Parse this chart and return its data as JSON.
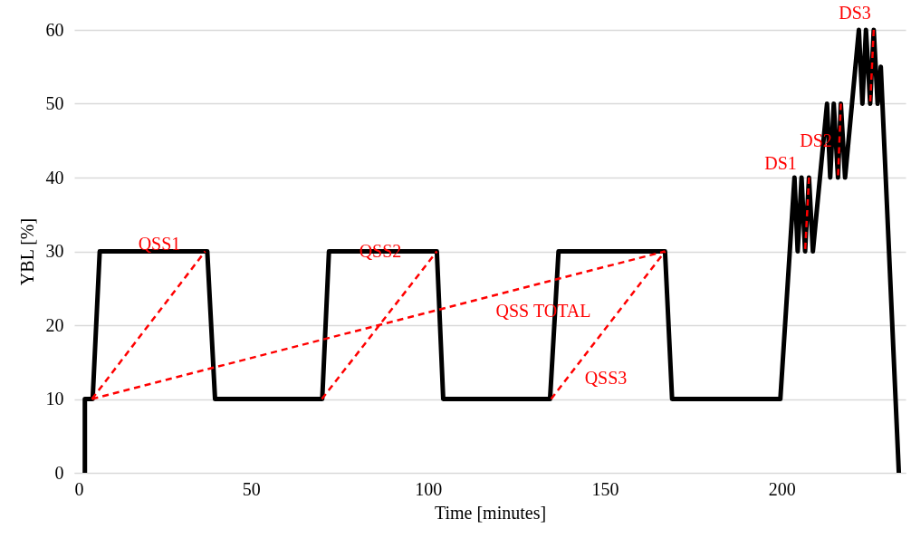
{
  "chart_data": {
    "type": "line",
    "xlabel": "Time [minutes]",
    "ylabel": "YBL [%]",
    "xlim": [
      0,
      235
    ],
    "ylim": [
      0,
      60
    ],
    "xticks": [
      0,
      50,
      100,
      150,
      200
    ],
    "yticks": [
      0,
      10,
      20,
      30,
      40,
      50,
      60
    ],
    "grid": "y",
    "marker": "none",
    "series": [
      {
        "color": "#000000",
        "line_style": "solid",
        "x": [
          3,
          3,
          5.2,
          7.2,
          37.6,
          39.8,
          70.1,
          72,
          102.5,
          104.3,
          134.5,
          136.9,
          167,
          169,
          199.6,
          203.6,
          204.5,
          205.6,
          206.6,
          207.7,
          208.8,
          212.8,
          213.7,
          214.7,
          215.9,
          216.7,
          217.9,
          221.8,
          222.8,
          223.8,
          225,
          226,
          227.1,
          228,
          233.1
        ],
        "values": [
          0,
          10,
          10,
          30,
          30,
          10,
          10,
          30,
          30,
          10,
          10,
          30,
          30,
          10,
          10,
          40,
          30,
          40,
          30,
          40,
          30,
          50,
          40,
          50,
          40,
          50,
          40,
          60,
          50,
          60,
          50,
          60,
          50,
          55,
          0
        ]
      },
      {
        "color": "#ff0000",
        "line_style": "dashed",
        "x": [
          5,
          37
        ],
        "values": [
          10,
          30
        ]
      },
      {
        "color": "#ff0000",
        "line_style": "dashed",
        "x": [
          5,
          167
        ],
        "values": [
          10,
          30
        ]
      },
      {
        "color": "#ff0000",
        "line_style": "dashed",
        "x": [
          70,
          102.5
        ],
        "values": [
          10,
          30
        ]
      },
      {
        "color": "#ff0000",
        "line_style": "dashed",
        "x": [
          134.8,
          167
        ],
        "values": [
          10,
          30
        ]
      },
      {
        "color": "#ff0000",
        "line_style": "dashed",
        "x": [
          207.7,
          206.6
        ],
        "values": [
          40,
          30
        ]
      },
      {
        "color": "#ff0000",
        "line_style": "dashed",
        "x": [
          216.7,
          215.9
        ],
        "values": [
          50,
          40
        ]
      },
      {
        "color": "#ff0000",
        "line_style": "dashed",
        "x": [
          226,
          225
        ],
        "values": [
          60,
          50
        ]
      }
    ],
    "annotations": [
      "QSS1",
      "QSS2",
      "QSS TOTAL",
      "QSS3",
      "DS1",
      "DS2",
      "DS3"
    ]
  }
}
